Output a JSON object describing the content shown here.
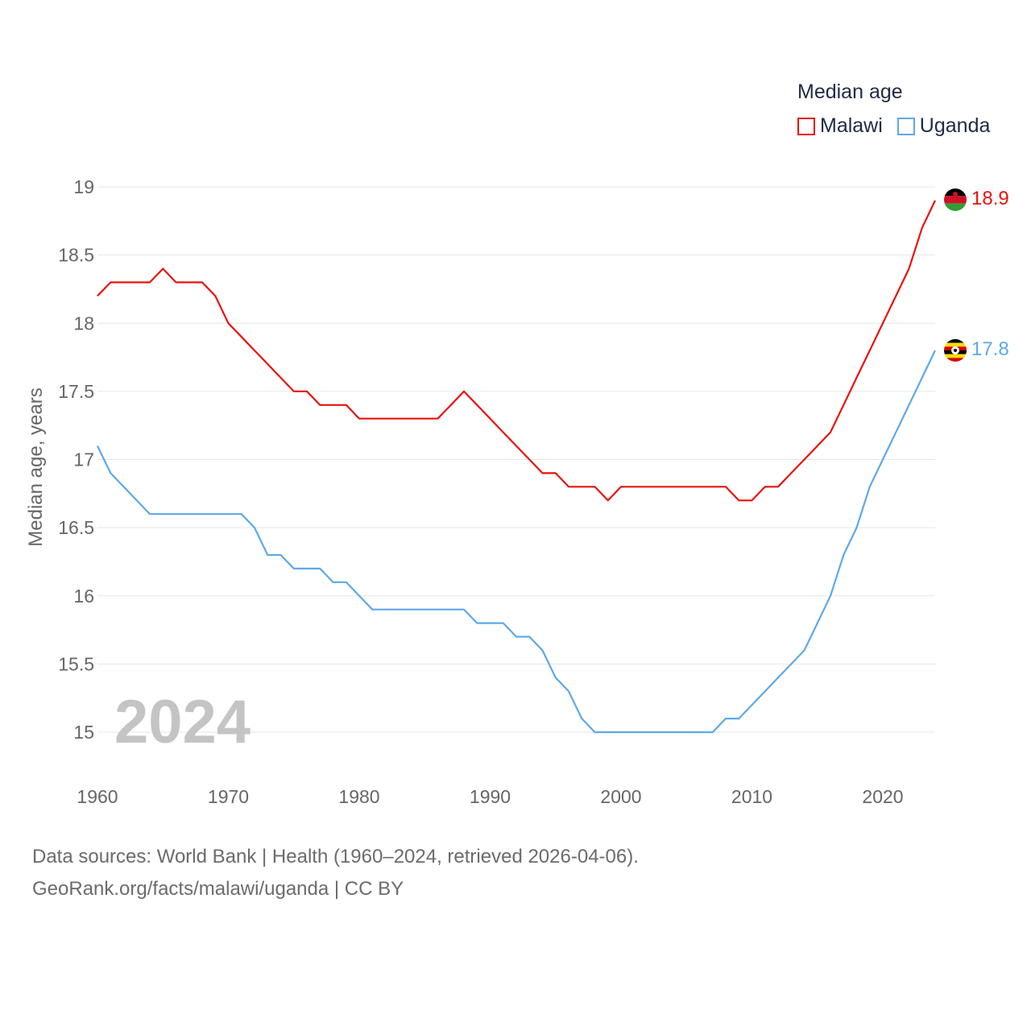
{
  "legend": {
    "title": "Median age",
    "items": [
      {
        "label": "Malawi",
        "color": "#e8120c"
      },
      {
        "label": "Uganda",
        "color": "#5ea8e8"
      }
    ]
  },
  "footer": {
    "line1": "Data sources: World Bank | Health (1960–2024, retrieved 2026-04-06).",
    "line2": "GeoRank.org/facts/malawi/uganda | CC BY"
  },
  "year_label": "2024",
  "chart_data": {
    "type": "line",
    "title": "Median age",
    "xlabel": "",
    "ylabel": "Median age, years",
    "xlim": [
      1960,
      2024
    ],
    "ylim": [
      15,
      19
    ],
    "xticks": [
      1960,
      1970,
      1980,
      1990,
      2000,
      2010,
      2020
    ],
    "yticks": [
      15,
      15.5,
      16,
      16.5,
      17,
      17.5,
      18,
      18.5,
      19
    ],
    "ytick_labels": [
      "15",
      "15.5",
      "16",
      "16.5",
      "17",
      "17.5",
      "18",
      "18.5",
      "19"
    ],
    "grid": true,
    "x": [
      1960,
      1961,
      1962,
      1963,
      1964,
      1965,
      1966,
      1967,
      1968,
      1969,
      1970,
      1971,
      1972,
      1973,
      1974,
      1975,
      1976,
      1977,
      1978,
      1979,
      1980,
      1981,
      1982,
      1983,
      1984,
      1985,
      1986,
      1987,
      1988,
      1989,
      1990,
      1991,
      1992,
      1993,
      1994,
      1995,
      1996,
      1997,
      1998,
      1999,
      2000,
      2001,
      2002,
      2003,
      2004,
      2005,
      2006,
      2007,
      2008,
      2009,
      2010,
      2011,
      2012,
      2013,
      2014,
      2015,
      2016,
      2017,
      2018,
      2019,
      2020,
      2021,
      2022,
      2023,
      2024
    ],
    "series": [
      {
        "name": "Malawi",
        "color": "#e8120c",
        "end_label": "18.9",
        "values": [
          18.2,
          18.3,
          18.3,
          18.3,
          18.3,
          18.4,
          18.3,
          18.3,
          18.3,
          18.2,
          18.0,
          17.9,
          17.8,
          17.7,
          17.6,
          17.5,
          17.5,
          17.4,
          17.4,
          17.4,
          17.3,
          17.3,
          17.3,
          17.3,
          17.3,
          17.3,
          17.3,
          17.4,
          17.5,
          17.4,
          17.3,
          17.2,
          17.1,
          17.0,
          16.9,
          16.9,
          16.8,
          16.8,
          16.8,
          16.7,
          16.8,
          16.8,
          16.8,
          16.8,
          16.8,
          16.8,
          16.8,
          16.8,
          16.8,
          16.7,
          16.7,
          16.8,
          16.8,
          16.9,
          17.0,
          17.1,
          17.2,
          17.4,
          17.6,
          17.8,
          18.0,
          18.2,
          18.4,
          18.7,
          18.9
        ]
      },
      {
        "name": "Uganda",
        "color": "#5ea8e8",
        "end_label": "17.8",
        "values": [
          17.1,
          16.9,
          16.8,
          16.7,
          16.6,
          16.6,
          16.6,
          16.6,
          16.6,
          16.6,
          16.6,
          16.6,
          16.5,
          16.3,
          16.3,
          16.2,
          16.2,
          16.2,
          16.1,
          16.1,
          16.0,
          15.9,
          15.9,
          15.9,
          15.9,
          15.9,
          15.9,
          15.9,
          15.9,
          15.8,
          15.8,
          15.8,
          15.7,
          15.7,
          15.6,
          15.4,
          15.3,
          15.1,
          15.0,
          15.0,
          15.0,
          15.0,
          15.0,
          15.0,
          15.0,
          15.0,
          15.0,
          15.0,
          15.1,
          15.1,
          15.2,
          15.3,
          15.4,
          15.5,
          15.6,
          15.8,
          16.0,
          16.3,
          16.5,
          16.8,
          17.0,
          17.2,
          17.4,
          17.6,
          17.8
        ]
      }
    ]
  }
}
